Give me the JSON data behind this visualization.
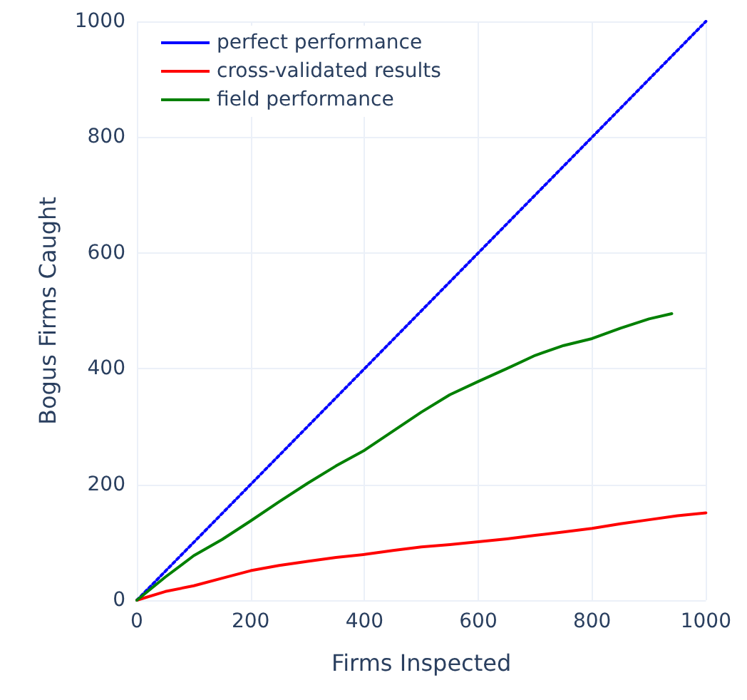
{
  "chart_data": {
    "type": "line",
    "xlabel": "Firms Inspected",
    "ylabel": "Bogus Firms Caught",
    "xlim": [
      0,
      1000
    ],
    "ylim": [
      0,
      1000
    ],
    "xticks": [
      0,
      200,
      400,
      600,
      800,
      1000
    ],
    "yticks": [
      0,
      200,
      400,
      600,
      800,
      1000
    ],
    "grid": true,
    "legend": "top left",
    "marker": "none",
    "series": [
      {
        "name": "perfect performance",
        "color": "#0000ff",
        "line_style": "dotted",
        "x": [
          0,
          1000
        ],
        "values": [
          0,
          1000
        ]
      },
      {
        "name": "cross-validated results",
        "color": "#ff0000",
        "line_style": "solid",
        "x": [
          0,
          50,
          100,
          150,
          200,
          250,
          300,
          350,
          400,
          450,
          500,
          550,
          600,
          650,
          700,
          750,
          800,
          850,
          900,
          950,
          1000
        ],
        "values": [
          0,
          15,
          25,
          38,
          51,
          60,
          67,
          74,
          79,
          86,
          92,
          96,
          101,
          106,
          112,
          118,
          124,
          132,
          139,
          146,
          151
        ]
      },
      {
        "name": "field performance",
        "color": "#008000",
        "line_style": "solid",
        "x": [
          0,
          50,
          100,
          150,
          200,
          250,
          300,
          350,
          400,
          450,
          500,
          550,
          600,
          650,
          700,
          750,
          800,
          850,
          900,
          940
        ],
        "values": [
          0,
          40,
          77,
          105,
          137,
          170,
          202,
          232,
          259,
          292,
          325,
          355,
          378,
          400,
          423,
          440,
          452,
          470,
          486,
          495
        ]
      }
    ]
  }
}
